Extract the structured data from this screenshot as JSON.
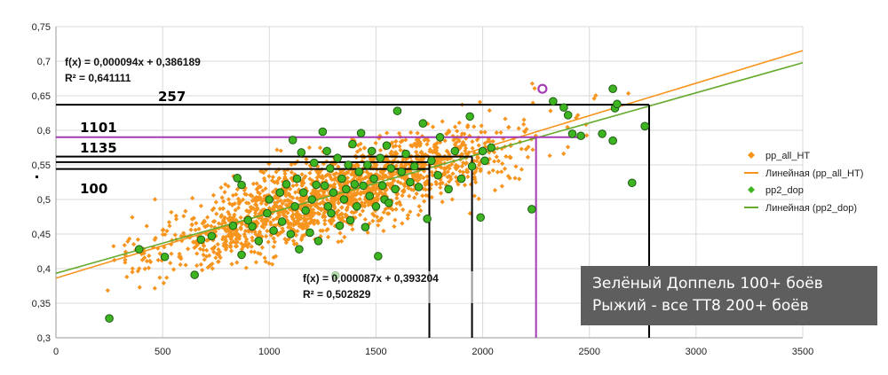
{
  "chart_data": {
    "type": "scatter",
    "xlim": [
      0,
      3500
    ],
    "ylim": [
      0.3,
      0.75
    ],
    "x_ticks": [
      0,
      500,
      1000,
      1500,
      2000,
      2500,
      3000,
      3500
    ],
    "y_ticks": [
      "0,3",
      "0,35",
      "0,4",
      "0,45",
      "0,5",
      "0,55",
      "0,6",
      "0,65",
      "0,7",
      "0,75"
    ],
    "grid": true,
    "legend_position": "right",
    "series": [
      {
        "name": "pp_all_HT",
        "color": "#f7941d",
        "marker": "diamond",
        "count_estimate": 1800,
        "trend": {
          "name": "Линейная (pp_all_HT)",
          "slope": 9.4e-05,
          "intercept": 0.386189,
          "equation": "f(x) = 0,000094x + 0,386189",
          "r2": "R² = 0,641111",
          "color": "#f7941d"
        }
      },
      {
        "name": "pp2_dop",
        "color": "#3cb521",
        "marker": "circle",
        "points": [
          [
            250,
            0.328
          ],
          [
            390,
            0.428
          ],
          [
            510,
            0.417
          ],
          [
            650,
            0.391
          ],
          [
            680,
            0.442
          ],
          [
            730,
            0.447
          ],
          [
            830,
            0.462
          ],
          [
            850,
            0.531
          ],
          [
            870,
            0.521
          ],
          [
            870,
            0.42
          ],
          [
            900,
            0.47
          ],
          [
            920,
            0.461
          ],
          [
            950,
            0.44
          ],
          [
            990,
            0.48
          ],
          [
            1000,
            0.5
          ],
          [
            1020,
            0.455
          ],
          [
            1050,
            0.51
          ],
          [
            1060,
            0.468
          ],
          [
            1080,
            0.522
          ],
          [
            1100,
            0.45
          ],
          [
            1110,
            0.586
          ],
          [
            1120,
            0.49
          ],
          [
            1130,
            0.53
          ],
          [
            1140,
            0.428
          ],
          [
            1150,
            0.568
          ],
          [
            1160,
            0.51
          ],
          [
            1170,
            0.484
          ],
          [
            1190,
            0.452
          ],
          [
            1200,
            0.5
          ],
          [
            1210,
            0.553
          ],
          [
            1220,
            0.521
          ],
          [
            1230,
            0.44
          ],
          [
            1250,
            0.598
          ],
          [
            1260,
            0.52
          ],
          [
            1270,
            0.57
          ],
          [
            1275,
            0.49
          ],
          [
            1285,
            0.545
          ],
          [
            1290,
            0.48
          ],
          [
            1300,
            0.51
          ],
          [
            1310,
            0.39
          ],
          [
            1320,
            0.56
          ],
          [
            1330,
            0.462
          ],
          [
            1340,
            0.53
          ],
          [
            1350,
            0.5
          ],
          [
            1360,
            0.515
          ],
          [
            1370,
            0.55
          ],
          [
            1380,
            0.47
          ],
          [
            1390,
            0.58
          ],
          [
            1400,
            0.522
          ],
          [
            1410,
            0.49
          ],
          [
            1420,
            0.54
          ],
          [
            1430,
            0.596
          ],
          [
            1440,
            0.52
          ],
          [
            1450,
            0.46
          ],
          [
            1460,
            0.55
          ],
          [
            1470,
            0.505
          ],
          [
            1480,
            0.57
          ],
          [
            1490,
            0.53
          ],
          [
            1500,
            0.49
          ],
          [
            1510,
            0.418
          ],
          [
            1520,
            0.56
          ],
          [
            1530,
            0.52
          ],
          [
            1540,
            0.5
          ],
          [
            1550,
            0.578
          ],
          [
            1560,
            0.495
          ],
          [
            1570,
            0.545
          ],
          [
            1590,
            0.515
          ],
          [
            1600,
            0.628
          ],
          [
            1620,
            0.54
          ],
          [
            1640,
            0.566
          ],
          [
            1660,
            0.525
          ],
          [
            1680,
            0.548
          ],
          [
            1700,
            0.518
          ],
          [
            1720,
            0.61
          ],
          [
            1740,
            0.472
          ],
          [
            1760,
            0.556
          ],
          [
            1790,
            0.535
          ],
          [
            1800,
            0.59
          ],
          [
            1840,
            0.515
          ],
          [
            1870,
            0.57
          ],
          [
            1900,
            0.53
          ],
          [
            1940,
            0.62
          ],
          [
            1950,
            0.548
          ],
          [
            1990,
            0.474
          ],
          [
            2000,
            0.57
          ],
          [
            2010,
            0.556
          ],
          [
            2040,
            0.575
          ],
          [
            2230,
            0.486
          ],
          [
            2330,
            0.642
          ],
          [
            2380,
            0.633
          ],
          [
            2400,
            0.622
          ],
          [
            2420,
            0.595
          ],
          [
            2460,
            0.592
          ],
          [
            2560,
            0.595
          ],
          [
            2610,
            0.585
          ],
          [
            2620,
            0.632
          ],
          [
            2610,
            0.66
          ],
          [
            2630,
            0.638
          ],
          [
            2700,
            0.524
          ],
          [
            2760,
            0.606
          ]
        ],
        "trend": {
          "name": "Линейная (pp2_dop)",
          "slope": 8.7e-05,
          "intercept": 0.393204,
          "equation": "f(x) = 0,000087x + 0,393204",
          "r2": "R² = 0,502829",
          "color": "#66aa2e"
        }
      }
    ],
    "highlight": {
      "x": 2280,
      "y": 0.66,
      "color": "#a43bb5",
      "hline_y": 0.59,
      "vline_x": 2250,
      "vline_y_top": 0.59
    },
    "levels": [
      {
        "label": "257",
        "y": 0.637,
        "x": 2780
      },
      {
        "label": "1101",
        "y": 0.562,
        "x": 1950
      },
      {
        "label": "1135",
        "y": 0.554,
        "x": 1750
      },
      {
        "label": "100",
        "y": 0.544,
        "x": 1750
      }
    ],
    "level_dot_y": 0.53,
    "annotation": {
      "lines": [
        "Зелёный Доппель 100+ боёв",
        "Рыжий - все ТТ8 200+ боёв"
      ],
      "background": "#5e5e5e"
    }
  }
}
